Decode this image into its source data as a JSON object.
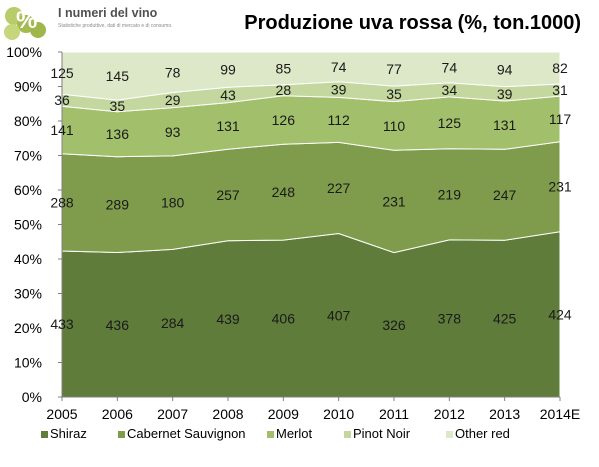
{
  "header": {
    "logo_title": "I numeri del vino",
    "logo_subtitle": "Statistiche produttive, dati di mercato e di consumo.",
    "logo_symbol": "%"
  },
  "chart_data": {
    "type": "area",
    "stacked": "percent",
    "title": "Produzione uva rossa (%, ton.1000)",
    "xlabel": "",
    "ylabel": "",
    "ylim": [
      0,
      100
    ],
    "y_ticks": [
      "0%",
      "10%",
      "20%",
      "30%",
      "40%",
      "50%",
      "60%",
      "70%",
      "80%",
      "90%",
      "100%"
    ],
    "categories": [
      "2005",
      "2006",
      "2007",
      "2008",
      "2009",
      "2010",
      "2011",
      "2012",
      "2013",
      "2014E"
    ],
    "series": [
      {
        "name": "Shiraz",
        "color": "#5f7c3a",
        "values": [
          433,
          436,
          284,
          439,
          406,
          407,
          326,
          378,
          425,
          424
        ]
      },
      {
        "name": "Cabernet Sauvignon",
        "color": "#7e9c4b",
        "values": [
          288,
          289,
          180,
          257,
          248,
          227,
          231,
          219,
          247,
          231
        ]
      },
      {
        "name": "Merlot",
        "color": "#a2bf6b",
        "values": [
          141,
          136,
          93,
          131,
          126,
          112,
          110,
          125,
          131,
          117
        ]
      },
      {
        "name": "Pinot Noir",
        "color": "#c3d79e",
        "values": [
          36,
          35,
          29,
          43,
          28,
          39,
          35,
          34,
          39,
          31
        ]
      },
      {
        "name": "Other red",
        "color": "#dce8c8",
        "values": [
          125,
          145,
          78,
          99,
          85,
          74,
          77,
          74,
          94,
          82
        ]
      }
    ],
    "grid": false,
    "legend": "bottom"
  }
}
